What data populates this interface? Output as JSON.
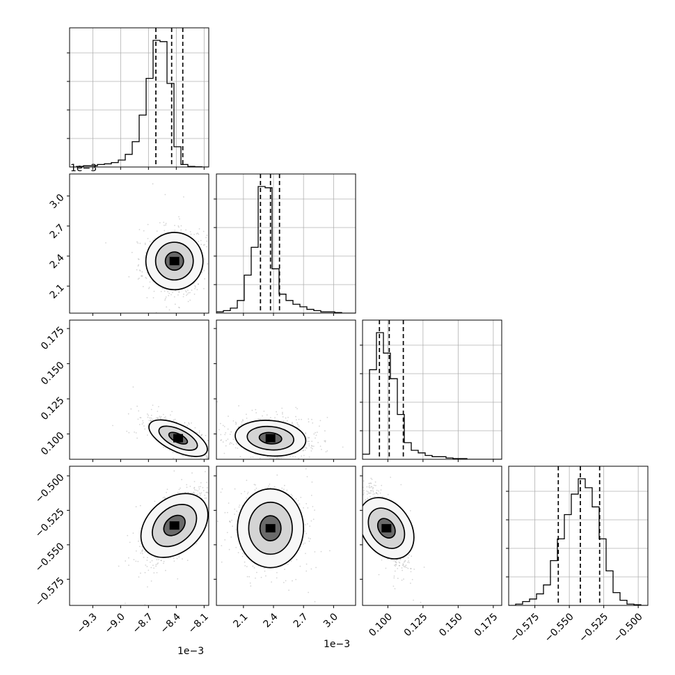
{
  "chart_data": {
    "type": "corner",
    "parameters": [
      "p0",
      "p1",
      "p2",
      "p3"
    ],
    "axis_ranges": {
      "p0": [
        -9.55,
        -8.05
      ],
      "p1": [
        1.83,
        3.22
      ],
      "p2": [
        0.082,
        0.181
      ],
      "p3": [
        -0.594,
        -0.493
      ]
    },
    "ticks": {
      "p0": [
        -9.3,
        -9.0,
        -8.7,
        -8.4,
        -8.1
      ],
      "p1": [
        2.1,
        2.4,
        2.7,
        3.0
      ],
      "p2": [
        0.1,
        0.125,
        0.15,
        0.175
      ],
      "p3": [
        -0.575,
        -0.55,
        -0.525,
        -0.5
      ]
    },
    "tick_labels": {
      "p0": [
        "−9.3",
        "−9.0",
        "−8.7",
        "−8.4",
        "−8.1"
      ],
      "p1": [
        "2.1",
        "2.4",
        "2.7",
        "3.0"
      ],
      "p2": [
        "0.100",
        "0.125",
        "0.150",
        "0.175"
      ],
      "p3": [
        "−0.575",
        "−0.550",
        "−0.525",
        "−0.500"
      ]
    },
    "offset_labels": {
      "p0_top": "1e−3",
      "p0_bottom": "1e−3",
      "p1_bottom": "1e−3"
    },
    "quantiles": {
      "p0": [
        -8.62,
        -8.45,
        -8.33
      ],
      "p1": [
        2.27,
        2.37,
        2.46
      ],
      "p2": [
        0.094,
        0.101,
        0.111
      ],
      "p3": [
        -0.558,
        -0.542,
        -0.528
      ]
    },
    "histograms": {
      "p0": {
        "edges_start": -9.55,
        "bin_width": 0.075,
        "counts": [
          0,
          0.5,
          1,
          1,
          2,
          2.5,
          3.5,
          5.5,
          10,
          20,
          41,
          70,
          100,
          99,
          66,
          16,
          2,
          0.5,
          0.2,
          0
        ]
      },
      "p1": {
        "edges_start": 1.83,
        "bin_width": 0.0695,
        "counts": [
          1,
          2,
          4,
          10,
          30,
          52,
          100,
          99,
          35,
          15,
          10,
          7,
          5,
          3,
          2,
          1,
          1,
          0.5,
          0,
          0
        ]
      },
      "p2": {
        "edges_start": 0.082,
        "bin_width": 0.00495,
        "counts": [
          4,
          70,
          99,
          83,
          63,
          35,
          13,
          7,
          5,
          3,
          2,
          2,
          1,
          0.5,
          0.5,
          0,
          0,
          0,
          0,
          0
        ]
      },
      "p3": {
        "edges_start": -0.594,
        "bin_width": 0.00505,
        "counts": [
          0,
          1,
          3,
          5,
          9,
          16,
          35,
          52,
          71,
          87,
          99,
          92,
          77,
          52,
          27,
          10,
          4,
          1,
          0.5,
          0
        ]
      }
    },
    "pair_densities": [
      {
        "x": "p0",
        "y": "p1",
        "peak": [
          -8.42,
          2.35
        ],
        "sx": 0.14,
        "sy": 0.13,
        "rho": 0.0,
        "contour_scale": [
          2.2,
          1.45,
          0.7
        ]
      },
      {
        "x": "p0",
        "y": "p2",
        "peak": [
          -8.38,
          0.097
        ],
        "sx": 0.14,
        "sy": 0.0062,
        "rho": -0.72,
        "contour_scale": [
          2.2,
          1.45,
          0.7
        ]
      },
      {
        "x": "p1",
        "y": "p2",
        "peak": [
          2.37,
          0.097
        ],
        "sx": 0.16,
        "sy": 0.0058,
        "rho": -0.18,
        "contour_scale": [
          2.2,
          1.45,
          0.7
        ]
      },
      {
        "x": "p0",
        "y": "p3",
        "peak": [
          -8.42,
          -0.536
        ],
        "sx": 0.14,
        "sy": 0.012,
        "rho": 0.68,
        "contour_scale": [
          2.2,
          1.45,
          0.7
        ]
      },
      {
        "x": "p1",
        "y": "p3",
        "peak": [
          2.37,
          -0.538
        ],
        "sx": 0.15,
        "sy": 0.013,
        "rho": 0.0,
        "contour_scale": [
          2.2,
          1.45,
          0.7
        ]
      },
      {
        "x": "p2",
        "y": "p3",
        "peak": [
          0.099,
          -0.538
        ],
        "sx": 0.0062,
        "sy": 0.012,
        "rho": -0.75,
        "contour_scale": [
          2.2,
          1.45,
          0.7
        ]
      }
    ],
    "grid": true,
    "colors": {
      "samples": "#888888",
      "contour": "#000000",
      "quantile_line": "#000000",
      "grid": "#b0b0b0"
    }
  }
}
